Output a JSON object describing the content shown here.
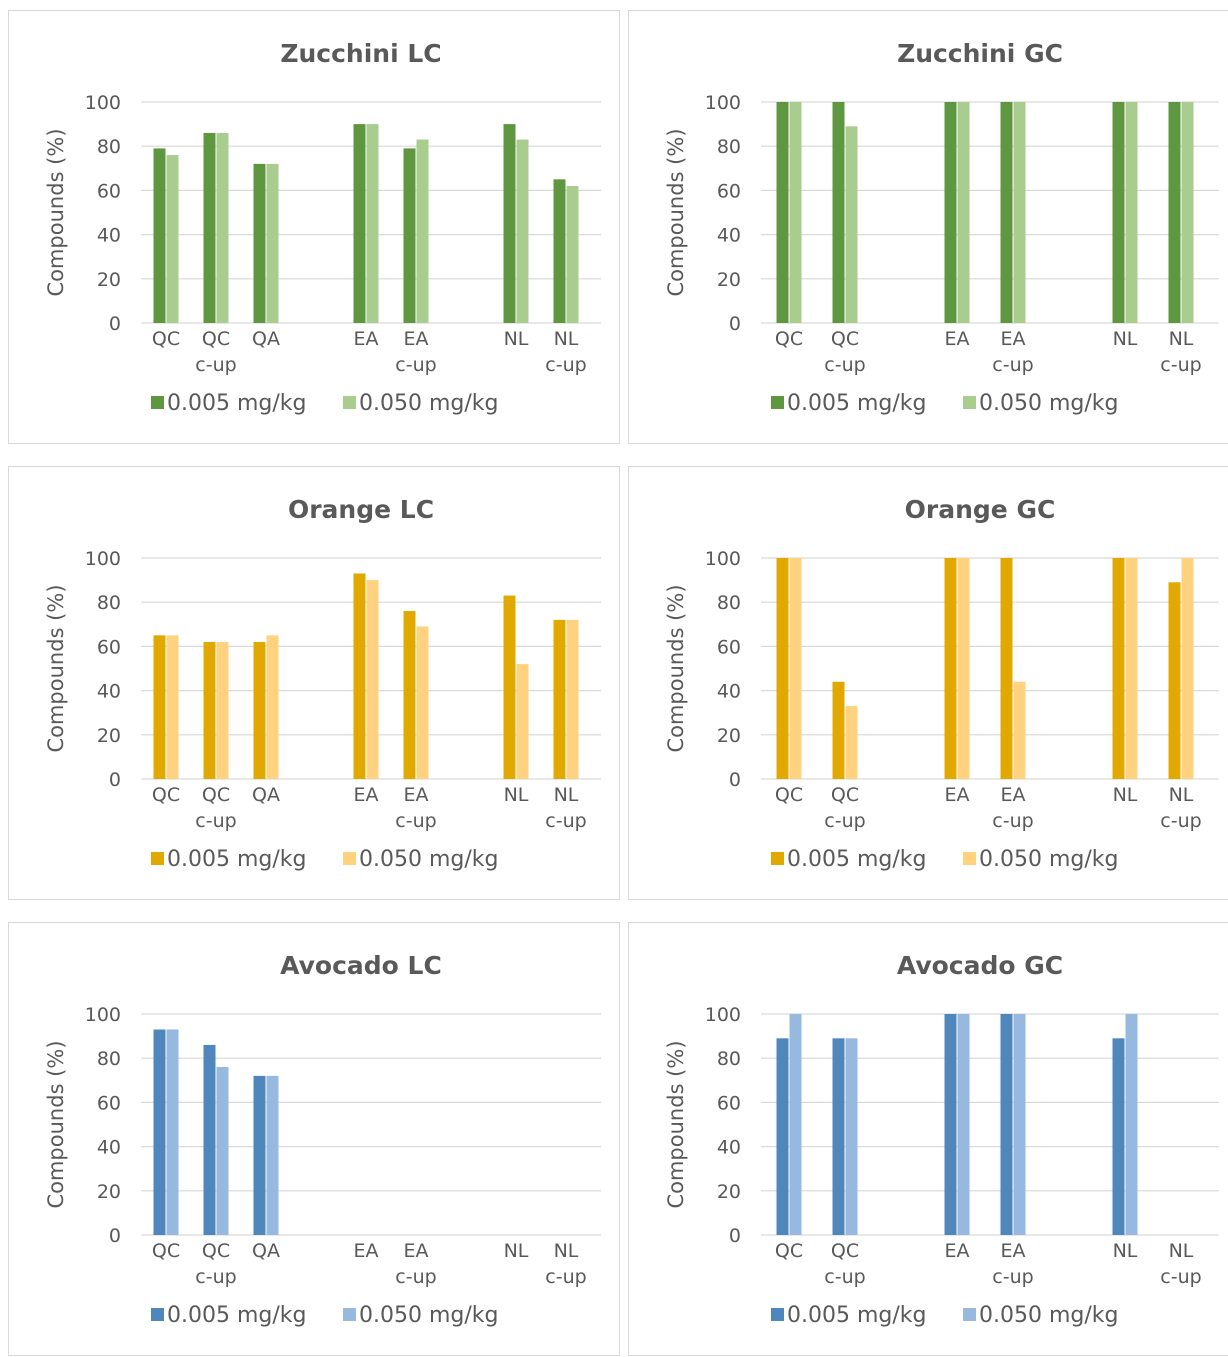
{
  "y_label": "Compounds (%)",
  "legend": [
    "0.005 mg/kg",
    "0.050 mg/kg"
  ],
  "chart_data": [
    {
      "type": "bar",
      "title": "Zucchini LC",
      "ylabel": "Compounds (%)",
      "ylim": [
        0,
        100
      ],
      "yticks": [
        0,
        20,
        40,
        60,
        80,
        100
      ],
      "categories": [
        [
          "QC"
        ],
        [
          "QC",
          "c-up"
        ],
        [
          "QA"
        ],
        [],
        [
          "EA"
        ],
        [
          "EA",
          "c-up"
        ],
        [],
        [
          "NL"
        ],
        [
          "NL",
          "c-up"
        ]
      ],
      "colors": [
        "#5f9640",
        "#a9cc8f"
      ],
      "series": [
        {
          "name": "0.005 mg/kg",
          "values": [
            79,
            86,
            72,
            null,
            90,
            79,
            null,
            90,
            65
          ]
        },
        {
          "name": "0.050 mg/kg",
          "values": [
            76,
            86,
            72,
            null,
            90,
            83,
            null,
            83,
            62
          ]
        }
      ]
    },
    {
      "type": "bar",
      "title": "Zucchini GC",
      "ylabel": "Compounds (%)",
      "ylim": [
        0,
        100
      ],
      "yticks": [
        0,
        20,
        40,
        60,
        80,
        100
      ],
      "categories": [
        [
          "QC"
        ],
        [
          "QC",
          "c-up"
        ],
        [],
        [
          "EA"
        ],
        [
          "EA",
          "c-up"
        ],
        [],
        [
          "NL"
        ],
        [
          "NL",
          "c-up"
        ]
      ],
      "colors": [
        "#5f9640",
        "#a9cc8f"
      ],
      "series": [
        {
          "name": "0.005 mg/kg",
          "values": [
            100,
            100,
            null,
            100,
            100,
            null,
            100,
            100
          ]
        },
        {
          "name": "0.050 mg/kg",
          "values": [
            100,
            89,
            null,
            100,
            100,
            null,
            100,
            100
          ]
        }
      ]
    },
    {
      "type": "bar",
      "title": "Orange LC",
      "ylabel": "Compounds (%)",
      "ylim": [
        0,
        100
      ],
      "yticks": [
        0,
        20,
        40,
        60,
        80,
        100
      ],
      "categories": [
        [
          "QC"
        ],
        [
          "QC",
          "c-up"
        ],
        [
          "QA"
        ],
        [],
        [
          "EA"
        ],
        [
          "EA",
          "c-up"
        ],
        [],
        [
          "NL"
        ],
        [
          "NL",
          "c-up"
        ]
      ],
      "colors": [
        "#e1a800",
        "#ffd27f"
      ],
      "series": [
        {
          "name": "0.005 mg/kg",
          "values": [
            65,
            62,
            62,
            null,
            93,
            76,
            null,
            83,
            72
          ]
        },
        {
          "name": "0.050 mg/kg",
          "values": [
            65,
            62,
            65,
            null,
            90,
            69,
            null,
            52,
            72
          ]
        }
      ]
    },
    {
      "type": "bar",
      "title": "Orange GC",
      "ylabel": "Compounds (%)",
      "ylim": [
        0,
        100
      ],
      "yticks": [
        0,
        20,
        40,
        60,
        80,
        100
      ],
      "categories": [
        [
          "QC"
        ],
        [
          "QC",
          "c-up"
        ],
        [],
        [
          "EA"
        ],
        [
          "EA",
          "c-up"
        ],
        [],
        [
          "NL"
        ],
        [
          "NL",
          "c-up"
        ]
      ],
      "colors": [
        "#e1a800",
        "#ffd27f"
      ],
      "series": [
        {
          "name": "0.005 mg/kg",
          "values": [
            100,
            44,
            null,
            100,
            100,
            null,
            100,
            89
          ]
        },
        {
          "name": "0.050 mg/kg",
          "values": [
            100,
            33,
            null,
            100,
            44,
            null,
            100,
            100
          ]
        }
      ]
    },
    {
      "type": "bar",
      "title": "Avocado LC",
      "ylabel": "Compounds (%)",
      "ylim": [
        0,
        100
      ],
      "yticks": [
        0,
        20,
        40,
        60,
        80,
        100
      ],
      "categories": [
        [
          "QC"
        ],
        [
          "QC",
          "c-up"
        ],
        [
          "QA"
        ],
        [],
        [
          "EA"
        ],
        [
          "EA",
          "c-up"
        ],
        [],
        [
          "NL"
        ],
        [
          "NL",
          "c-up"
        ]
      ],
      "colors": [
        "#4f86bb",
        "#98b9df"
      ],
      "series": [
        {
          "name": "0.005 mg/kg",
          "values": [
            93,
            86,
            72,
            null,
            null,
            null,
            null,
            null,
            null
          ]
        },
        {
          "name": "0.050 mg/kg",
          "values": [
            93,
            76,
            72,
            null,
            null,
            null,
            null,
            null,
            null
          ]
        }
      ]
    },
    {
      "type": "bar",
      "title": "Avocado GC",
      "ylabel": "Compounds (%)",
      "ylim": [
        0,
        100
      ],
      "yticks": [
        0,
        20,
        40,
        60,
        80,
        100
      ],
      "categories": [
        [
          "QC"
        ],
        [
          "QC",
          "c-up"
        ],
        [],
        [
          "EA"
        ],
        [
          "EA",
          "c-up"
        ],
        [],
        [
          "NL"
        ],
        [
          "NL",
          "c-up"
        ]
      ],
      "colors": [
        "#4f86bb",
        "#98b9df"
      ],
      "series": [
        {
          "name": "0.005 mg/kg",
          "values": [
            89,
            89,
            null,
            100,
            100,
            null,
            89,
            null
          ]
        },
        {
          "name": "0.050 mg/kg",
          "values": [
            100,
            89,
            null,
            100,
            100,
            null,
            100,
            null
          ]
        }
      ]
    }
  ]
}
